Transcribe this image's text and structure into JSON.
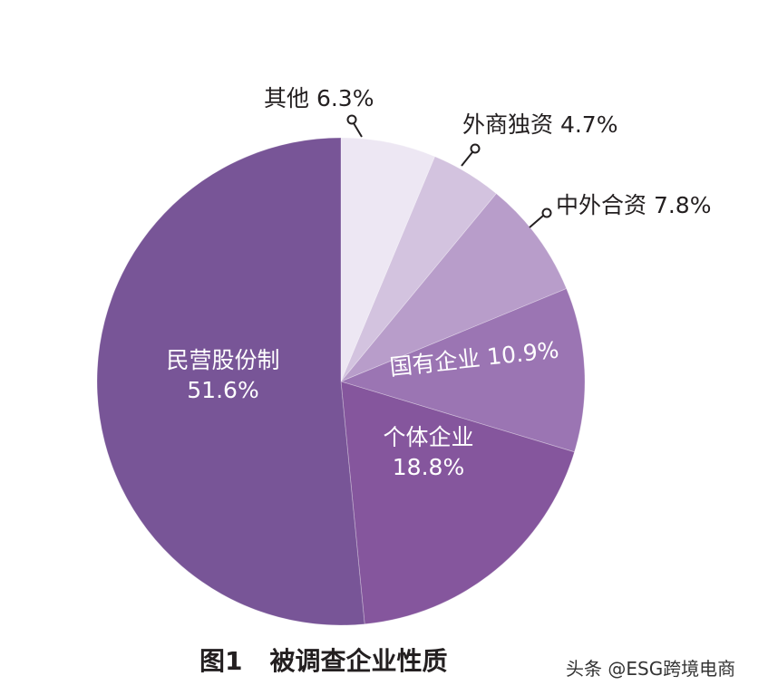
{
  "chart_data": {
    "type": "pie",
    "title": "图1　被调查企业性质",
    "title_prefix": "图1",
    "title_text": "被调查企业性质",
    "start": "12 o'clock",
    "direction": "clockwise",
    "slices": [
      {
        "label": "其他",
        "value": 6.3,
        "display": "其他 6.3%",
        "color": "#ede7f3"
      },
      {
        "label": "外商独资",
        "value": 4.7,
        "display": "外商独资 4.7%",
        "color": "#d3c3df"
      },
      {
        "label": "中外合资",
        "value": 7.8,
        "display": "中外合资 7.8%",
        "color": "#b89dca"
      },
      {
        "label": "国有企业",
        "value": 10.9,
        "display": "国有企业 10.9%",
        "color": "#9b75b3"
      },
      {
        "label": "个体企业",
        "value": 18.8,
        "display_name": "个体企业",
        "display_value": "18.8%",
        "color": "#85569d"
      },
      {
        "label": "民营股份制",
        "value": 51.6,
        "display_name": "民营股份制",
        "display_value": "51.6%",
        "color": "#785597"
      }
    ]
  },
  "watermark": "头条 @ESG跨境电商"
}
